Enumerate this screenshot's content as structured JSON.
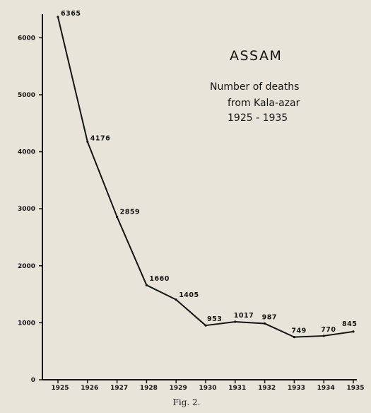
{
  "chart_data": {
    "type": "line",
    "title": "ASSAM",
    "subtitle_lines": [
      "Number of deaths",
      "from Kala-azar",
      "1925 - 1935"
    ],
    "caption": "Fig. 2.",
    "x": [
      "1925",
      "1926",
      "1927",
      "1928",
      "1929",
      "1930",
      "1931",
      "1932",
      "1933",
      "1934",
      "1935"
    ],
    "values": [
      6365,
      4176,
      2859,
      1660,
      1405,
      953,
      1017,
      987,
      749,
      770,
      845
    ],
    "labels": [
      "6365",
      "4176",
      "2859",
      "1660",
      "1405",
      "953",
      "1017",
      "987",
      "749",
      "770",
      "845"
    ],
    "ylim": [
      0,
      6000
    ],
    "yticks": [
      "0",
      "1000",
      "2000",
      "3000",
      "4000",
      "5000",
      "6000"
    ],
    "grid": false,
    "legend": false,
    "colors": {
      "line": "#141414",
      "background": "#e8e4d9"
    }
  }
}
